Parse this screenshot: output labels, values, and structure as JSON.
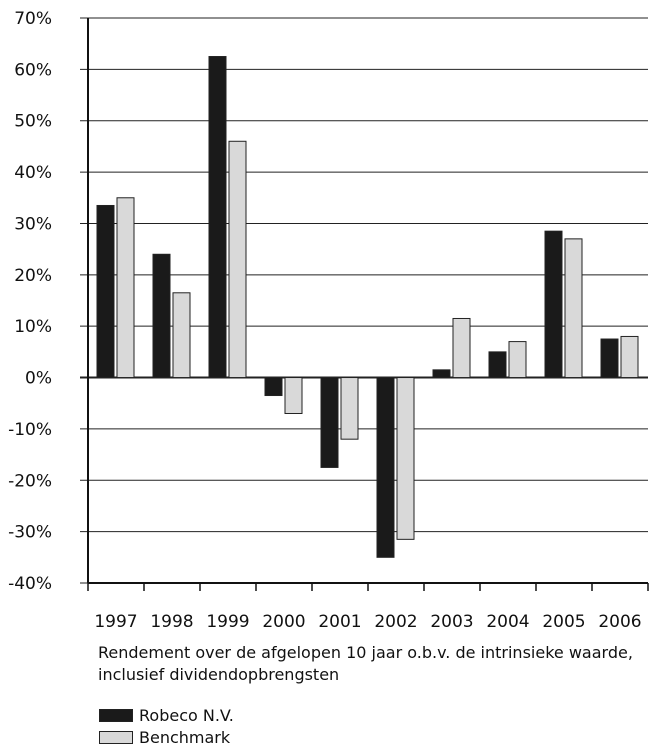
{
  "chart_data": {
    "type": "bar",
    "categories": [
      "1997",
      "1998",
      "1999",
      "2000",
      "2001",
      "2002",
      "2003",
      "2004",
      "2005",
      "2006"
    ],
    "series": [
      {
        "name": "Robeco N.V.",
        "color": "#1a1a1a",
        "values": [
          33.5,
          24,
          62.5,
          -3.5,
          -17.5,
          -35,
          1.5,
          5,
          28.5,
          7.5
        ]
      },
      {
        "name": "Benchmark",
        "color": "#d9d9d9",
        "values": [
          35,
          16.5,
          46,
          -7,
          -12,
          -31.5,
          11.5,
          7,
          27,
          8
        ]
      }
    ],
    "yticks": [
      70,
      60,
      50,
      40,
      30,
      20,
      10,
      0,
      -10,
      -20,
      -30,
      -40
    ],
    "ytick_labels": [
      "70%",
      "60%",
      "50%",
      "40%",
      "30%",
      "20%",
      "10%",
      "0%",
      "-10%",
      "-20%",
      "-30%",
      "-40%"
    ],
    "ylim": [
      -40,
      70
    ],
    "grid": true,
    "legend_position": "bottom-left",
    "xlabel": "Rendement over de afgelopen 10 jaar o.b.v. de intrinsieke waarde, inclusief dividendopbrengsten"
  },
  "caption": {
    "line1": "Rendement over de afgelopen 10 jaar o.b.v. de intrinsieke waarde,",
    "line2": "inclusief dividendopbrengsten"
  }
}
